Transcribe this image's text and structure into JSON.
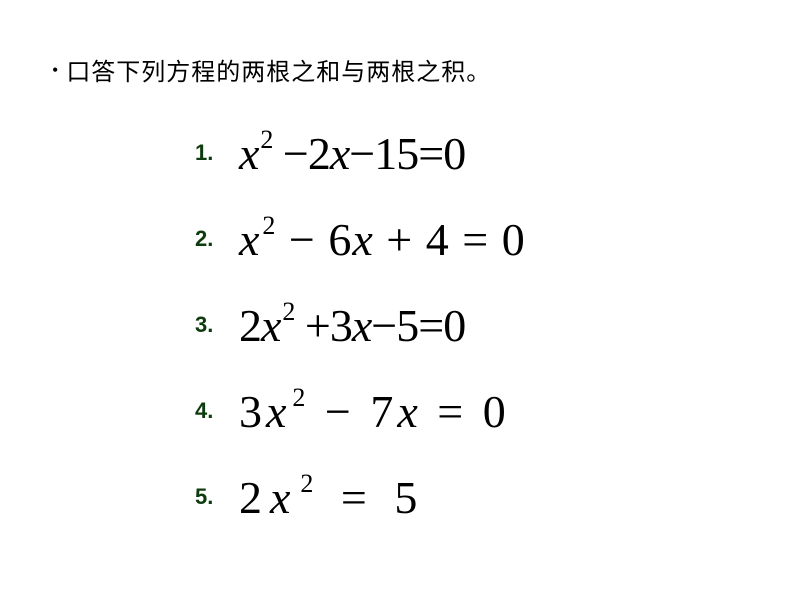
{
  "background_color": "#ffffff",
  "text_color": "#000000",
  "number_label_color": "#0e3b0e",
  "prompt": {
    "bullet": "•",
    "text": "口答下列方程的两根之和与两根之积。",
    "fontsize_pt": 24
  },
  "equations": [
    {
      "label": "1.",
      "display": "x² − 2x − 15 = 0",
      "type": "quadratic",
      "a": 1,
      "b": -2,
      "c": -15,
      "spacing": "tight",
      "fontsize_pt": 46
    },
    {
      "label": "2.",
      "display": "x² − 6x + 4 = 0",
      "type": "quadratic",
      "a": 1,
      "b": -6,
      "c": 4,
      "spacing": "normal",
      "fontsize_pt": 46
    },
    {
      "label": "3.",
      "display": "2x² + 3x − 5 = 0",
      "type": "quadratic",
      "a": 2,
      "b": 3,
      "c": -5,
      "spacing": "tight",
      "fontsize_pt": 46
    },
    {
      "label": "4.",
      "display": "3x² − 7x = 0",
      "type": "quadratic",
      "a": 3,
      "b": -7,
      "c": 0,
      "spacing": "spaced",
      "fontsize_pt": 46
    },
    {
      "label": "5.",
      "display": "2x² = 5",
      "type": "quadratic",
      "a": 2,
      "b": 0,
      "c": -5,
      "spacing": "wide",
      "fontsize_pt": 46
    }
  ],
  "list_style": {
    "label_font_family": "Arial",
    "label_font_weight": "bold",
    "label_fontsize_pt": 22,
    "equation_font_family": "Times New Roman",
    "equation_font_style": "italic"
  }
}
